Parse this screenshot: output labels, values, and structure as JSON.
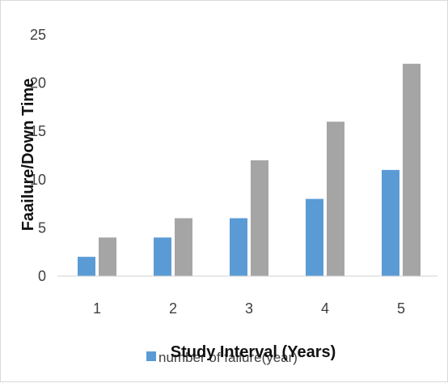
{
  "chart_data": {
    "type": "bar",
    "categories": [
      "1",
      "2",
      "3",
      "4",
      "5"
    ],
    "series": [
      {
        "name": "number of failure(year)",
        "color": "#5b9bd5",
        "values": [
          2,
          4,
          6,
          8,
          11
        ]
      },
      {
        "name": "",
        "color": "#a5a5a5",
        "values": [
          4,
          6,
          12,
          16,
          22
        ]
      }
    ],
    "xlabel": "Study Interval (Years)",
    "ylabel": "Faailure/Down Time",
    "yticks": [
      "0",
      "5",
      "10",
      "15",
      "20",
      "25"
    ],
    "ylim": [
      0,
      25
    ],
    "grid": false,
    "legend_position": "bottom"
  }
}
